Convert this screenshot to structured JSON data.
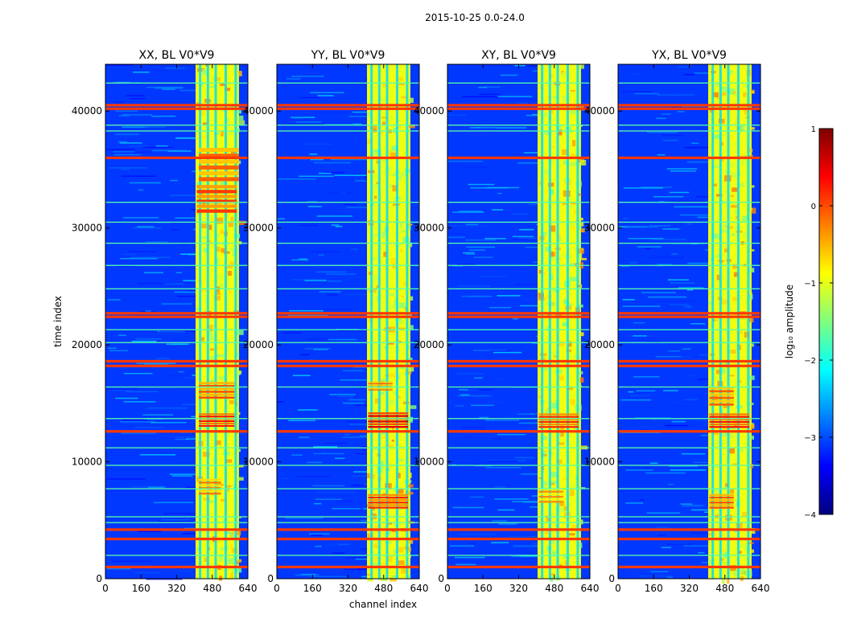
{
  "figure": {
    "suptitle": "2015-10-25 0.0-24.0",
    "ylabel": "time index",
    "xlabel": "channel index"
  },
  "chart_data": [
    {
      "type": "heatmap",
      "title": "XX, BL V0*V9",
      "xlim": [
        0,
        640
      ],
      "ylim": [
        0,
        44000
      ],
      "xticks": [
        0,
        160,
        320,
        480,
        640
      ],
      "yticks": [
        0,
        10000,
        20000,
        30000,
        40000
      ],
      "active_band": [
        405,
        600
      ],
      "active_band_columns": [
        405,
        420,
        440,
        455,
        475,
        490,
        520,
        535,
        560,
        580,
        600
      ],
      "strong_rfi_rows": [
        1000,
        3400,
        4200,
        12600,
        18200,
        18600,
        22400,
        22700,
        36000,
        40200,
        40500
      ],
      "weak_rfi_rows": [
        2000,
        4800,
        5300,
        7700,
        9700,
        11200,
        13700,
        16400,
        20200,
        21300,
        24800,
        26800,
        28700,
        30500,
        32200,
        38300,
        38800,
        42400
      ],
      "bright_patches": [
        [
          420,
          580,
          13000,
          14200,
          0.3
        ],
        [
          420,
          580,
          15400,
          16900,
          0.0
        ],
        [
          420,
          520,
          7200,
          8600,
          -0.2
        ],
        [
          410,
          590,
          31300,
          33800,
          0.1
        ],
        [
          420,
          600,
          34000,
          37000,
          -0.1
        ]
      ]
    },
    {
      "type": "heatmap",
      "title": "YY, BL V0*V9",
      "xlim": [
        0,
        640
      ],
      "ylim": [
        0,
        44000
      ],
      "xticks": [
        0,
        160,
        320,
        480,
        640
      ],
      "yticks": [
        0,
        10000,
        20000,
        30000,
        40000
      ],
      "active_band": [
        405,
        600
      ],
      "active_band_columns": [
        405,
        420,
        440,
        455,
        475,
        490,
        520,
        535,
        560,
        580,
        600
      ],
      "strong_rfi_rows": [
        1000,
        3400,
        4200,
        12600,
        18200,
        18600,
        22400,
        22700,
        36000,
        40200,
        40500
      ],
      "weak_rfi_rows": [
        2000,
        4800,
        5300,
        7700,
        9700,
        11200,
        13700,
        16400,
        20200,
        21300,
        24800,
        26800,
        28700,
        30500,
        32200,
        38300,
        38800,
        42400
      ],
      "bright_patches": [
        [
          410,
          590,
          12900,
          14300,
          0.5
        ],
        [
          410,
          520,
          16100,
          16900,
          -0.1
        ],
        [
          410,
          590,
          6000,
          7300,
          0.2
        ]
      ]
    },
    {
      "type": "heatmap",
      "title": "XY, BL V0*V9",
      "xlim": [
        0,
        640
      ],
      "ylim": [
        0,
        44000
      ],
      "xticks": [
        0,
        160,
        320,
        480,
        640
      ],
      "yticks": [
        0,
        10000,
        20000,
        30000,
        40000
      ],
      "active_band": [
        405,
        600
      ],
      "active_band_columns": [
        405,
        420,
        440,
        455,
        475,
        490,
        520,
        535,
        560,
        580,
        600
      ],
      "strong_rfi_rows": [
        1000,
        3400,
        4200,
        12600,
        18200,
        18600,
        22400,
        22700,
        36000,
        40200,
        40500
      ],
      "weak_rfi_rows": [
        2000,
        4800,
        5300,
        7700,
        9700,
        11200,
        13700,
        16400,
        20200,
        21300,
        24800,
        26800,
        28700,
        30500,
        32200,
        38300,
        38800,
        42400
      ],
      "bright_patches": [
        [
          410,
          590,
          12900,
          14200,
          0.2
        ],
        [
          410,
          520,
          6500,
          7800,
          -0.3
        ]
      ]
    },
    {
      "type": "heatmap",
      "title": "YX, BL V0*V9",
      "xlim": [
        0,
        640
      ],
      "ylim": [
        0,
        44000
      ],
      "xticks": [
        0,
        160,
        320,
        480,
        640
      ],
      "yticks": [
        0,
        10000,
        20000,
        30000,
        40000
      ],
      "active_band": [
        405,
        600
      ],
      "active_band_columns": [
        405,
        420,
        440,
        455,
        475,
        490,
        520,
        535,
        560,
        580,
        600
      ],
      "strong_rfi_rows": [
        1000,
        3400,
        4200,
        12600,
        18200,
        18600,
        22400,
        22700,
        36000,
        40200,
        40500
      ],
      "weak_rfi_rows": [
        2000,
        4800,
        5300,
        7700,
        9700,
        11200,
        13700,
        16400,
        20200,
        21300,
        24800,
        26800,
        28700,
        30500,
        32200,
        38300,
        38800,
        42400
      ],
      "bright_patches": [
        [
          410,
          590,
          12900,
          14200,
          0.3
        ],
        [
          410,
          520,
          6000,
          7300,
          0.0
        ],
        [
          410,
          520,
          14800,
          16500,
          -0.1
        ]
      ]
    }
  ],
  "colorbar": {
    "label": "log₁₀ amplitude",
    "ticks": [
      1,
      0,
      -1,
      -2,
      -3,
      -4
    ],
    "tick_labels": [
      "1",
      "0",
      "−1",
      "−2",
      "−3",
      "−4"
    ],
    "range": [
      -4,
      1
    ],
    "colormap": "jet",
    "colors": [
      "#00007f",
      "#0000ff",
      "#007fff",
      "#00ffff",
      "#7fff7f",
      "#ffff00",
      "#ff7f00",
      "#ff0000",
      "#7f0000"
    ]
  }
}
